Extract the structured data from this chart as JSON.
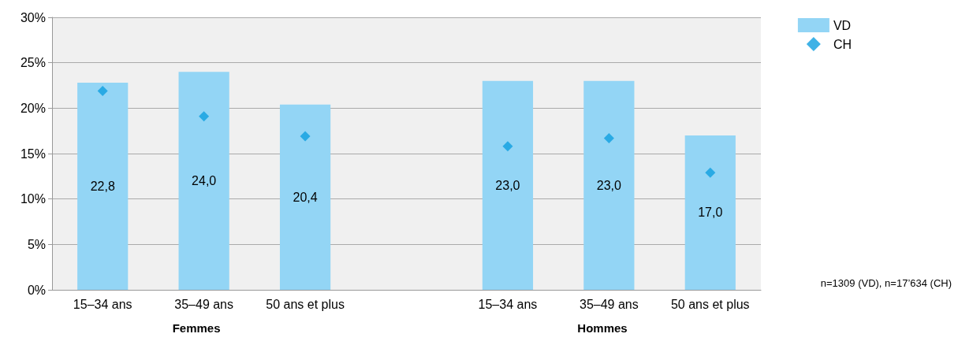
{
  "chart_data": {
    "type": "bar",
    "categories": [
      "15–34 ans",
      "35–49 ans",
      "50 ans et plus",
      null,
      "15–34 ans",
      "35–49 ans",
      "50 ans et plus"
    ],
    "series": [
      {
        "name": "VD",
        "color": "#93d5f5",
        "values": [
          22.8,
          24.0,
          20.4,
          null,
          23.0,
          23.0,
          17.0
        ],
        "value_labels": [
          "22,8",
          "24,0",
          "20,4",
          null,
          "23,0",
          "23,0",
          "17,0"
        ]
      },
      {
        "name": "CH",
        "type": "scatter",
        "color": "#0f9fe0",
        "marker": "diamond",
        "values": [
          21.9,
          19.1,
          16.9,
          null,
          15.8,
          16.7,
          12.9
        ]
      }
    ],
    "ylim": [
      0,
      30
    ],
    "yticks": [
      {
        "value": 0,
        "label": "0%"
      },
      {
        "value": 5,
        "label": "5%"
      },
      {
        "value": 10,
        "label": "10%"
      },
      {
        "value": 15,
        "label": "15%"
      },
      {
        "value": 20,
        "label": "20%"
      },
      {
        "value": 25,
        "label": "25%"
      },
      {
        "value": 30,
        "label": "30%"
      }
    ],
    "grid": "y",
    "legend": "top right",
    "annotations": [
      "Femmes",
      "Hommes",
      "n=1309 (VD), n=17’634 (CH)"
    ]
  }
}
